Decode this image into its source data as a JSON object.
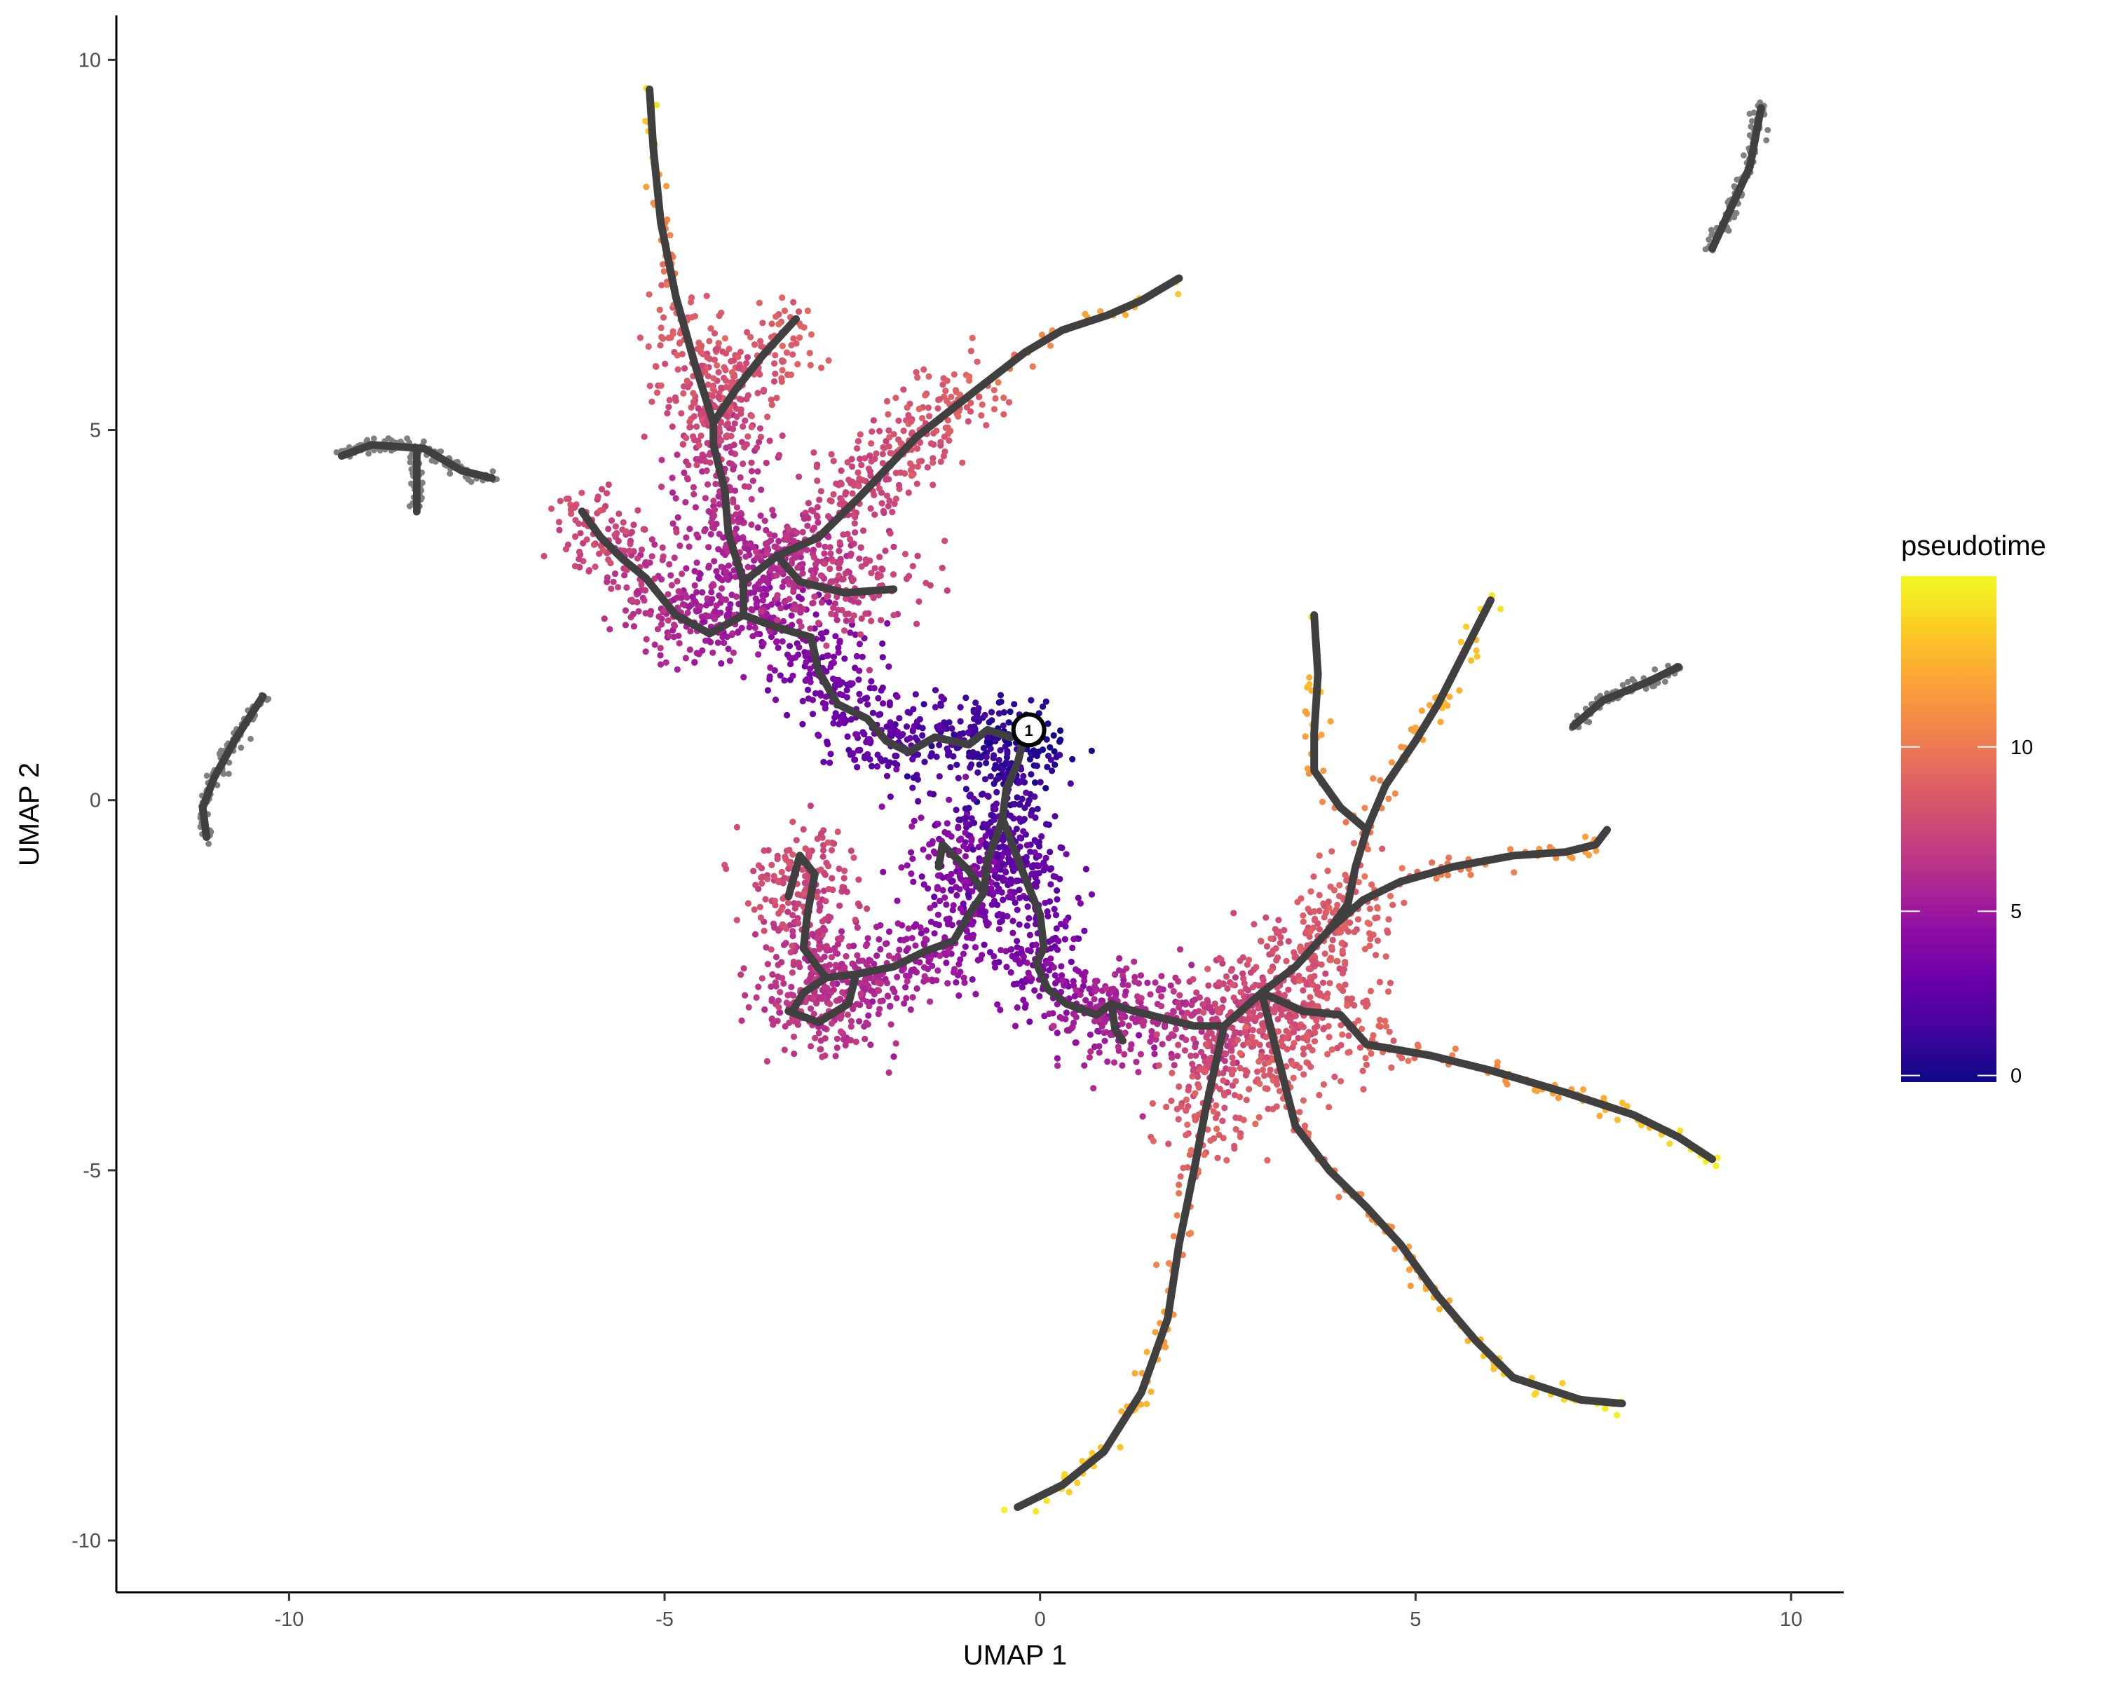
{
  "chart_data": {
    "type": "scatter",
    "xlabel": "UMAP 1",
    "ylabel": "UMAP 2",
    "xlim": [
      -12.3,
      10.7
    ],
    "ylim": [
      -10.7,
      10.6
    ],
    "x_ticks": [
      -10,
      -5,
      0,
      5,
      10
    ],
    "y_ticks": [
      -10,
      -5,
      0,
      5,
      10
    ],
    "x_tick_labels": [
      "-10",
      "-5",
      "0",
      "5",
      "10"
    ],
    "y_tick_labels": [
      "-10",
      "-5",
      "0",
      "5",
      "10"
    ],
    "grid": false,
    "legend": {
      "title": "pseudotime",
      "placement": "right",
      "range": [
        -0.2,
        15.2
      ],
      "ticks": [
        0,
        5,
        10
      ],
      "tick_labels": [
        "0",
        "5",
        "10"
      ]
    },
    "colorscale": [
      "#0d0887",
      "#41049d",
      "#6a00a8",
      "#8f0da4",
      "#b12a90",
      "#cc4778",
      "#e16462",
      "#f2844b",
      "#fca636",
      "#fcce25",
      "#f0f921"
    ],
    "na_color": "#7f7f7f",
    "trajectory_color": "#404040",
    "root_node": {
      "label": "1",
      "x": -0.15,
      "y": 0.95
    },
    "disconnected_components": [
      {
        "path": [
          [
            -11.1,
            -0.5
          ],
          [
            -11.15,
            -0.1
          ],
          [
            -11.0,
            0.3
          ],
          [
            -10.7,
            0.85
          ],
          [
            -10.35,
            1.4
          ]
        ]
      },
      {
        "path": [
          [
            -9.3,
            4.65
          ],
          [
            -8.9,
            4.8
          ],
          [
            -8.2,
            4.75
          ],
          [
            -7.7,
            4.45
          ],
          [
            -7.3,
            4.35
          ]
        ]
      },
      {
        "path": [
          [
            -8.3,
            4.7
          ],
          [
            -8.3,
            4.2
          ],
          [
            -8.3,
            3.9
          ]
        ]
      },
      {
        "path": [
          [
            8.95,
            7.45
          ],
          [
            9.2,
            8.0
          ],
          [
            9.45,
            8.55
          ],
          [
            9.6,
            9.35
          ]
        ]
      },
      {
        "path": [
          [
            7.1,
            1.0
          ],
          [
            7.5,
            1.35
          ],
          [
            8.1,
            1.6
          ],
          [
            8.5,
            1.8
          ]
        ]
      }
    ],
    "trajectory_branches": [
      {
        "path": [
          [
            -0.2,
            0.9
          ],
          [
            -0.4,
            0.85
          ],
          [
            -0.7,
            0.95
          ],
          [
            -0.95,
            0.75
          ],
          [
            -1.4,
            0.85
          ],
          [
            -1.75,
            0.65
          ],
          [
            -2.05,
            0.8
          ],
          [
            -2.3,
            1.1
          ],
          [
            -2.7,
            1.3
          ],
          [
            -2.95,
            1.75
          ],
          [
            -3.05,
            2.2
          ],
          [
            -3.55,
            2.35
          ],
          [
            -3.95,
            2.5
          ],
          [
            -4.4,
            2.25
          ],
          [
            -4.85,
            2.5
          ],
          [
            -5.25,
            3.0
          ],
          [
            -5.55,
            3.25
          ],
          [
            -5.85,
            3.55
          ],
          [
            -6.1,
            3.9
          ]
        ],
        "t": [
          0,
          0.5,
          1.0,
          1.4,
          1.8,
          2.2,
          2.5,
          2.8,
          3.1,
          3.5,
          3.9,
          4.4,
          4.9,
          5.4,
          6.0,
          6.5,
          7.0,
          7.5,
          8.0
        ]
      },
      {
        "path": [
          [
            -3.95,
            2.5
          ],
          [
            -3.95,
            2.95
          ],
          [
            -4.15,
            3.6
          ],
          [
            -4.2,
            4.2
          ],
          [
            -4.35,
            4.8
          ],
          [
            -4.35,
            5.1
          ],
          [
            -4.6,
            5.9
          ],
          [
            -4.85,
            6.8
          ],
          [
            -5.05,
            7.8
          ],
          [
            -5.15,
            8.8
          ],
          [
            -5.2,
            9.6
          ]
        ],
        "t": [
          4.9,
          5.3,
          5.8,
          6.3,
          6.8,
          7.3,
          8.3,
          9.5,
          10.8,
          12.5,
          14.5
        ]
      },
      {
        "path": [
          [
            -4.35,
            5.1
          ],
          [
            -4.05,
            5.55
          ],
          [
            -3.7,
            6.0
          ],
          [
            -3.25,
            6.5
          ]
        ],
        "t": [
          7.3,
          7.9,
          8.5,
          9.2
        ]
      },
      {
        "path": [
          [
            -3.95,
            2.95
          ],
          [
            -3.5,
            3.3
          ],
          [
            -2.95,
            3.55
          ],
          [
            -2.4,
            4.1
          ],
          [
            -1.65,
            4.9
          ],
          [
            -0.9,
            5.5
          ],
          [
            -0.2,
            6.05
          ],
          [
            0.3,
            6.35
          ],
          [
            0.9,
            6.55
          ],
          [
            1.35,
            6.75
          ],
          [
            1.85,
            7.05
          ]
        ],
        "t": [
          5.3,
          5.9,
          6.6,
          7.3,
          8.1,
          9.0,
          10.0,
          11.0,
          12.0,
          13.0,
          14.5
        ]
      },
      {
        "path": [
          [
            -3.5,
            3.3
          ],
          [
            -3.2,
            2.95
          ],
          [
            -2.6,
            2.8
          ],
          [
            -1.95,
            2.85
          ]
        ],
        "t": [
          5.9,
          6.4,
          6.9,
          7.4
        ]
      },
      {
        "path": [
          [
            -0.2,
            0.9
          ],
          [
            -0.3,
            0.5
          ],
          [
            -0.45,
            0.15
          ],
          [
            -0.5,
            -0.25
          ],
          [
            -0.6,
            -0.55
          ],
          [
            -0.7,
            -0.8
          ],
          [
            -0.75,
            -1.25
          ],
          [
            -0.95,
            -1.55
          ],
          [
            -1.15,
            -1.9
          ],
          [
            -1.55,
            -2.05
          ],
          [
            -1.95,
            -2.25
          ],
          [
            -2.45,
            -2.35
          ],
          [
            -2.85,
            -2.4
          ],
          [
            -3.15,
            -2.6
          ],
          [
            -3.3,
            -2.85
          ]
        ],
        "t": [
          0,
          0.6,
          1.2,
          1.8,
          2.4,
          3.0,
          3.5,
          4.0,
          4.5,
          5.0,
          5.4,
          5.8,
          6.2,
          6.6,
          7.0
        ]
      },
      {
        "path": [
          [
            -0.75,
            -1.25
          ],
          [
            -0.95,
            -0.95
          ],
          [
            -1.3,
            -0.6
          ],
          [
            -1.35,
            -0.9
          ]
        ],
        "t": [
          3.5,
          3.9,
          4.3,
          4.7
        ]
      },
      {
        "path": [
          [
            -2.85,
            -2.4
          ],
          [
            -3.15,
            -2.0
          ],
          [
            -3.1,
            -1.55
          ],
          [
            -3.0,
            -1.0
          ],
          [
            -3.2,
            -0.75
          ],
          [
            -3.35,
            -1.3
          ]
        ],
        "t": [
          6.2,
          6.6,
          7.0,
          7.4,
          7.8,
          8.2
        ]
      },
      {
        "path": [
          [
            -2.45,
            -2.35
          ],
          [
            -2.55,
            -2.75
          ],
          [
            -2.95,
            -3.0
          ],
          [
            -3.35,
            -2.85
          ]
        ],
        "t": [
          5.8,
          6.2,
          6.6,
          7.0
        ]
      },
      {
        "path": [
          [
            -0.5,
            -0.25
          ],
          [
            -0.35,
            -0.65
          ],
          [
            -0.2,
            -1.05
          ],
          [
            0.0,
            -1.55
          ],
          [
            0.05,
            -2.0
          ],
          [
            -0.05,
            -2.2
          ],
          [
            0.1,
            -2.55
          ],
          [
            0.35,
            -2.75
          ],
          [
            0.75,
            -2.9
          ],
          [
            0.95,
            -2.75
          ],
          [
            1.25,
            -2.85
          ],
          [
            1.65,
            -2.95
          ],
          [
            2.05,
            -3.05
          ],
          [
            2.45,
            -3.05
          ],
          [
            2.95,
            -2.6
          ]
        ],
        "t": [
          1.8,
          2.2,
          2.6,
          3.0,
          3.4,
          3.8,
          4.2,
          4.6,
          5.0,
          5.4,
          5.8,
          6.2,
          6.6,
          7.0,
          7.5
        ]
      },
      {
        "path": [
          [
            0.95,
            -2.75
          ],
          [
            1.0,
            -3.1
          ],
          [
            1.1,
            -3.25
          ]
        ],
        "t": [
          5.4,
          5.7,
          6.0
        ]
      },
      {
        "path": [
          [
            2.45,
            -3.05
          ],
          [
            2.35,
            -3.5
          ],
          [
            2.2,
            -4.2
          ],
          [
            2.05,
            -5.0
          ],
          [
            1.85,
            -6.0
          ],
          [
            1.7,
            -7.0
          ],
          [
            1.35,
            -8.0
          ],
          [
            0.85,
            -8.8
          ],
          [
            0.3,
            -9.25
          ],
          [
            -0.3,
            -9.55
          ]
        ],
        "t": [
          7.0,
          7.6,
          8.5,
          9.5,
          10.5,
          11.5,
          12.5,
          13.3,
          14.0,
          14.8
        ]
      },
      {
        "path": [
          [
            2.95,
            -2.6
          ],
          [
            3.05,
            -3.0
          ],
          [
            3.2,
            -3.6
          ],
          [
            3.4,
            -4.4
          ],
          [
            3.85,
            -5.0
          ],
          [
            4.35,
            -5.5
          ],
          [
            4.8,
            -6.0
          ],
          [
            5.3,
            -6.7
          ],
          [
            5.8,
            -7.3
          ],
          [
            6.3,
            -7.8
          ],
          [
            7.2,
            -8.1
          ],
          [
            7.75,
            -8.15
          ]
        ],
        "t": [
          7.5,
          8.0,
          8.6,
          9.3,
          10.0,
          10.7,
          11.4,
          12.1,
          12.8,
          13.5,
          14.2,
          15.0
        ]
      },
      {
        "path": [
          [
            2.95,
            -2.6
          ],
          [
            3.5,
            -2.85
          ],
          [
            4.0,
            -2.9
          ],
          [
            4.35,
            -3.3
          ],
          [
            5.2,
            -3.45
          ],
          [
            6.0,
            -3.65
          ],
          [
            7.0,
            -3.95
          ],
          [
            7.9,
            -4.25
          ],
          [
            8.5,
            -4.55
          ],
          [
            8.95,
            -4.85
          ]
        ],
        "t": [
          7.5,
          8.1,
          8.6,
          9.1,
          10.0,
          11.0,
          12.0,
          13.0,
          14.0,
          15.0
        ]
      },
      {
        "path": [
          [
            2.95,
            -2.6
          ],
          [
            3.4,
            -2.25
          ],
          [
            3.85,
            -1.75
          ],
          [
            4.1,
            -1.4
          ],
          [
            4.2,
            -0.9
          ],
          [
            4.35,
            -0.4
          ],
          [
            4.6,
            0.2
          ],
          [
            5.0,
            0.8
          ],
          [
            5.3,
            1.3
          ],
          [
            5.7,
            2.1
          ],
          [
            6.0,
            2.7
          ]
        ],
        "t": [
          7.5,
          8.0,
          8.5,
          9.0,
          9.5,
          10.0,
          10.8,
          11.6,
          12.4,
          13.4,
          14.5
        ]
      },
      {
        "path": [
          [
            4.35,
            -0.4
          ],
          [
            4.0,
            -0.1
          ],
          [
            3.65,
            0.4
          ],
          [
            3.65,
            0.9
          ],
          [
            3.7,
            1.7
          ],
          [
            3.65,
            2.5
          ]
        ],
        "t": [
          10.0,
          10.6,
          11.3,
          12.0,
          12.9,
          13.9
        ]
      },
      {
        "path": [
          [
            3.85,
            -1.75
          ],
          [
            4.3,
            -1.35
          ],
          [
            4.8,
            -1.1
          ],
          [
            5.5,
            -0.9
          ],
          [
            6.3,
            -0.75
          ],
          [
            7.0,
            -0.7
          ],
          [
            7.4,
            -0.6
          ],
          [
            7.55,
            -0.4
          ]
        ],
        "t": [
          8.5,
          9.0,
          9.5,
          10.1,
          10.8,
          11.5,
          12.1,
          12.6
        ]
      }
    ]
  }
}
